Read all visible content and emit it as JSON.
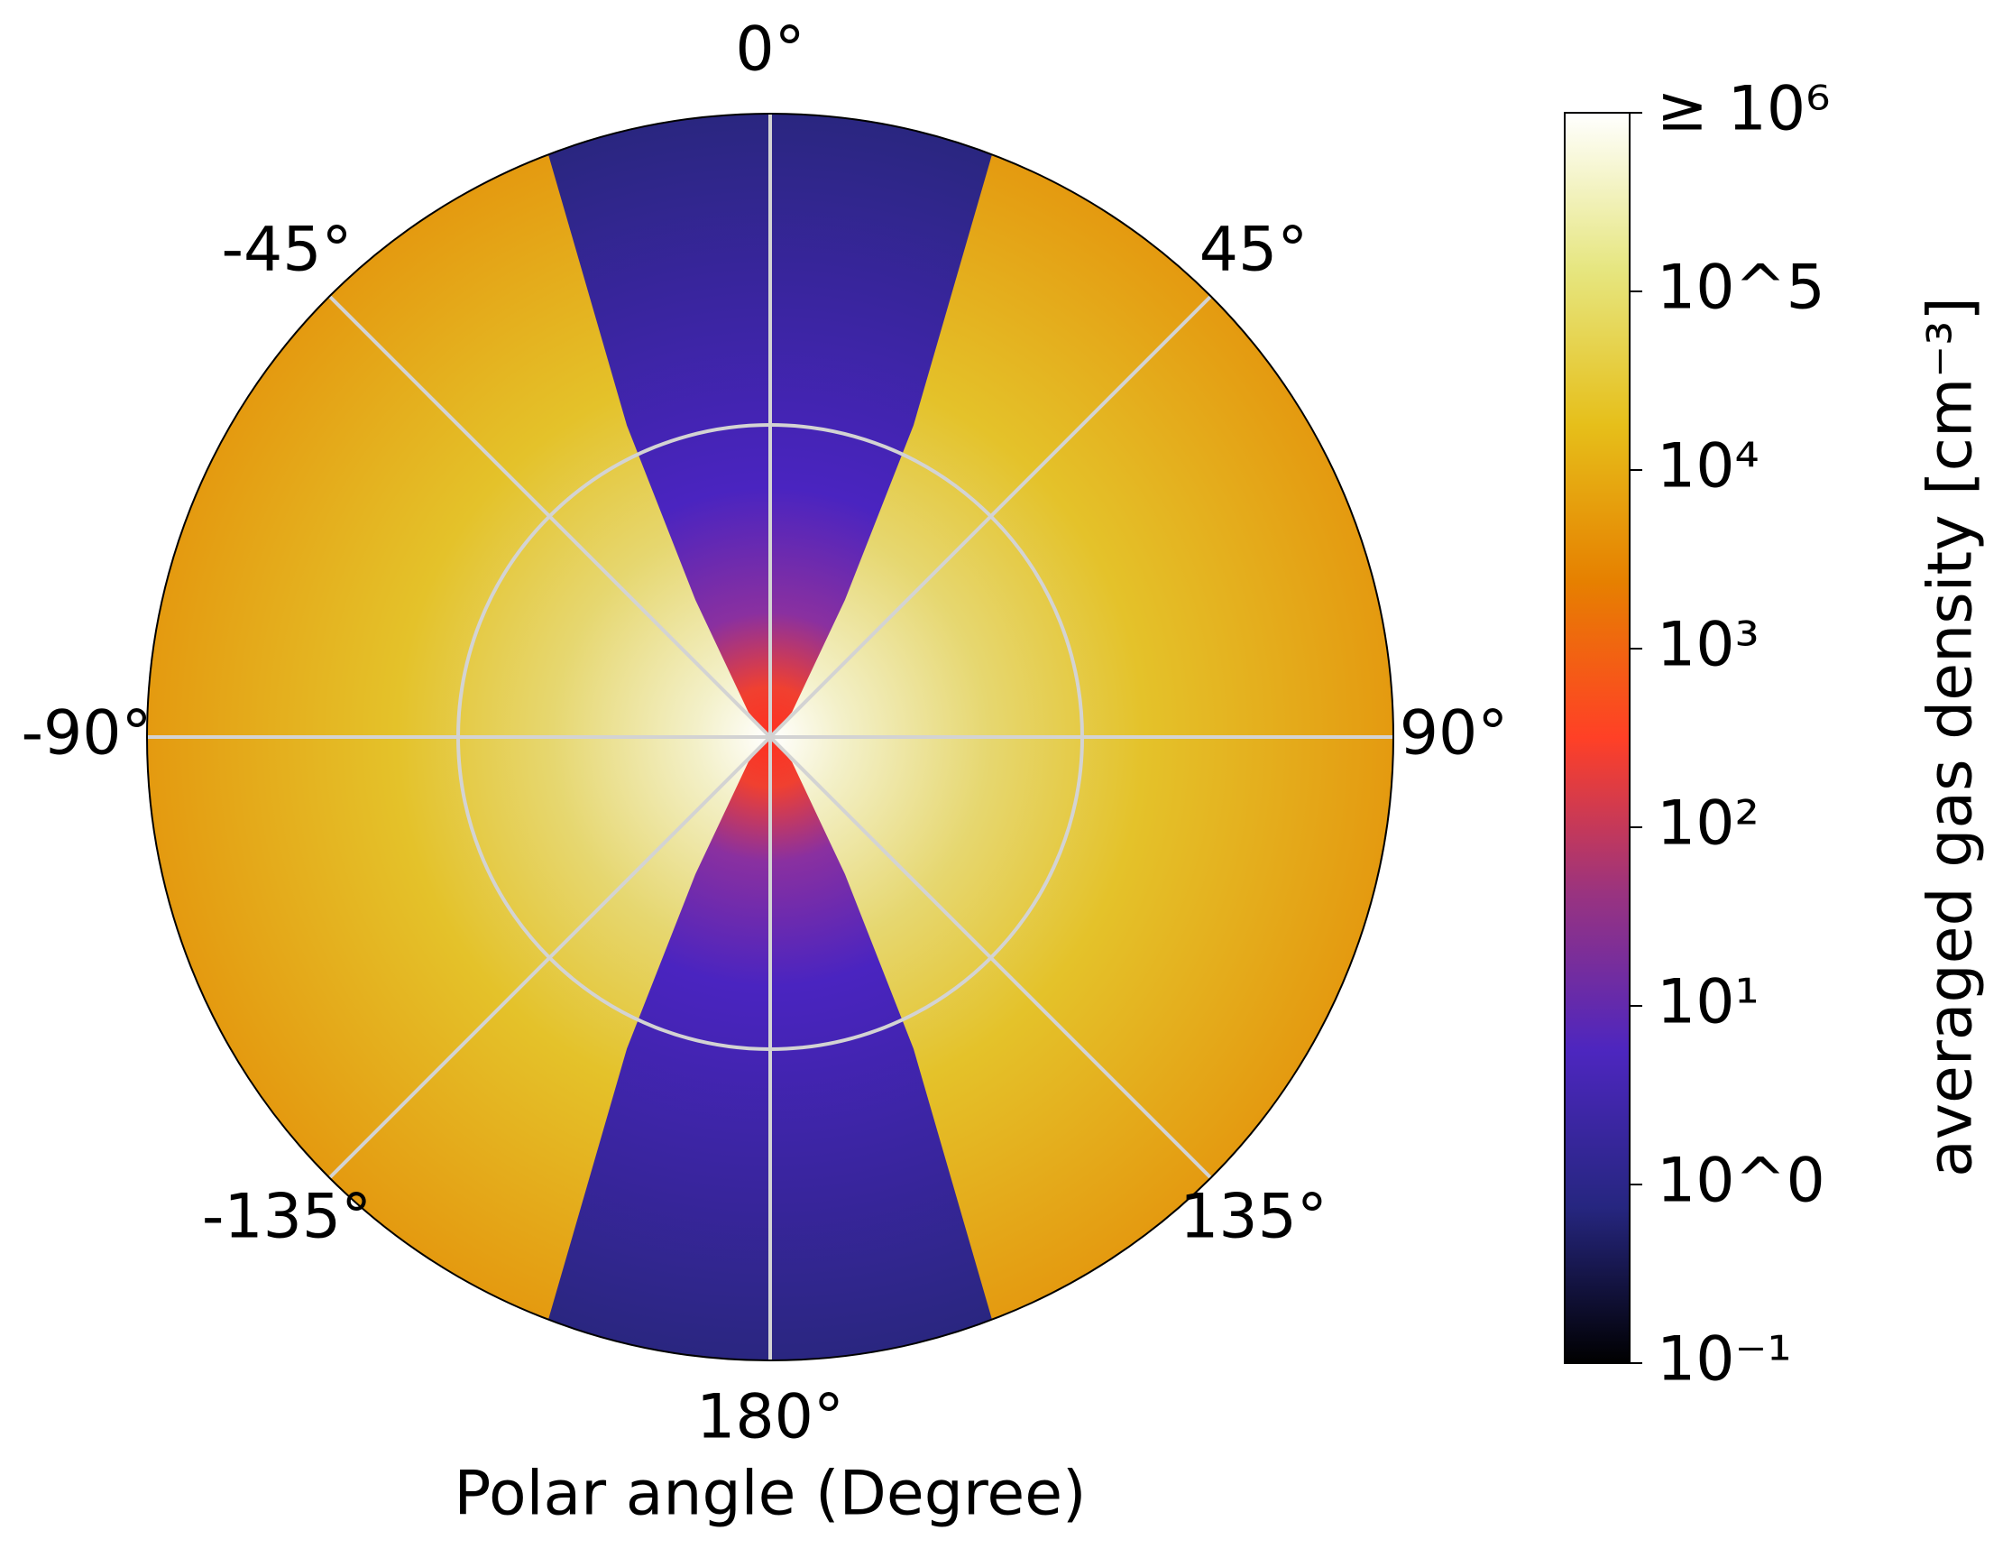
{
  "chart_data": {
    "type": "polar_heatmap",
    "xlabel": "Polar angle (Degree)",
    "thetaticks": [
      {
        "value": 0,
        "label": "0°"
      },
      {
        "value": 45,
        "label": "45°"
      },
      {
        "value": 90,
        "label": "90°"
      },
      {
        "value": 135,
        "label": "135°"
      },
      {
        "value": 180,
        "label": "180°"
      },
      {
        "value": -135,
        "label": "-135°"
      },
      {
        "value": -90,
        "label": "-90°"
      },
      {
        "value": -45,
        "label": "-45°"
      }
    ],
    "grid": true,
    "colorbar": {
      "label": "averaged gas density [cm⁻³]",
      "scale": "log",
      "clim": [
        0.1,
        1000000
      ],
      "ticks": [
        {
          "value": 0.1,
          "label": "10⁻¹"
        },
        {
          "value": 1,
          "label": "10^0"
        },
        {
          "value": 10,
          "label": "10¹"
        },
        {
          "value": 100,
          "label": "10²"
        },
        {
          "value": 1000,
          "label": "10³"
        },
        {
          "value": 10000,
          "label": "10⁴"
        },
        {
          "value": 100000,
          "label": "10^5"
        },
        {
          "value": 1000000,
          "label": "≥ 10⁶"
        }
      ],
      "colormap": [
        "#000000",
        "#262680",
        "#4d26bf",
        "#993380",
        "#ff4026",
        "#e68000",
        "#e6bf1a",
        "#e6e680",
        "#ffffff"
      ]
    }
  }
}
